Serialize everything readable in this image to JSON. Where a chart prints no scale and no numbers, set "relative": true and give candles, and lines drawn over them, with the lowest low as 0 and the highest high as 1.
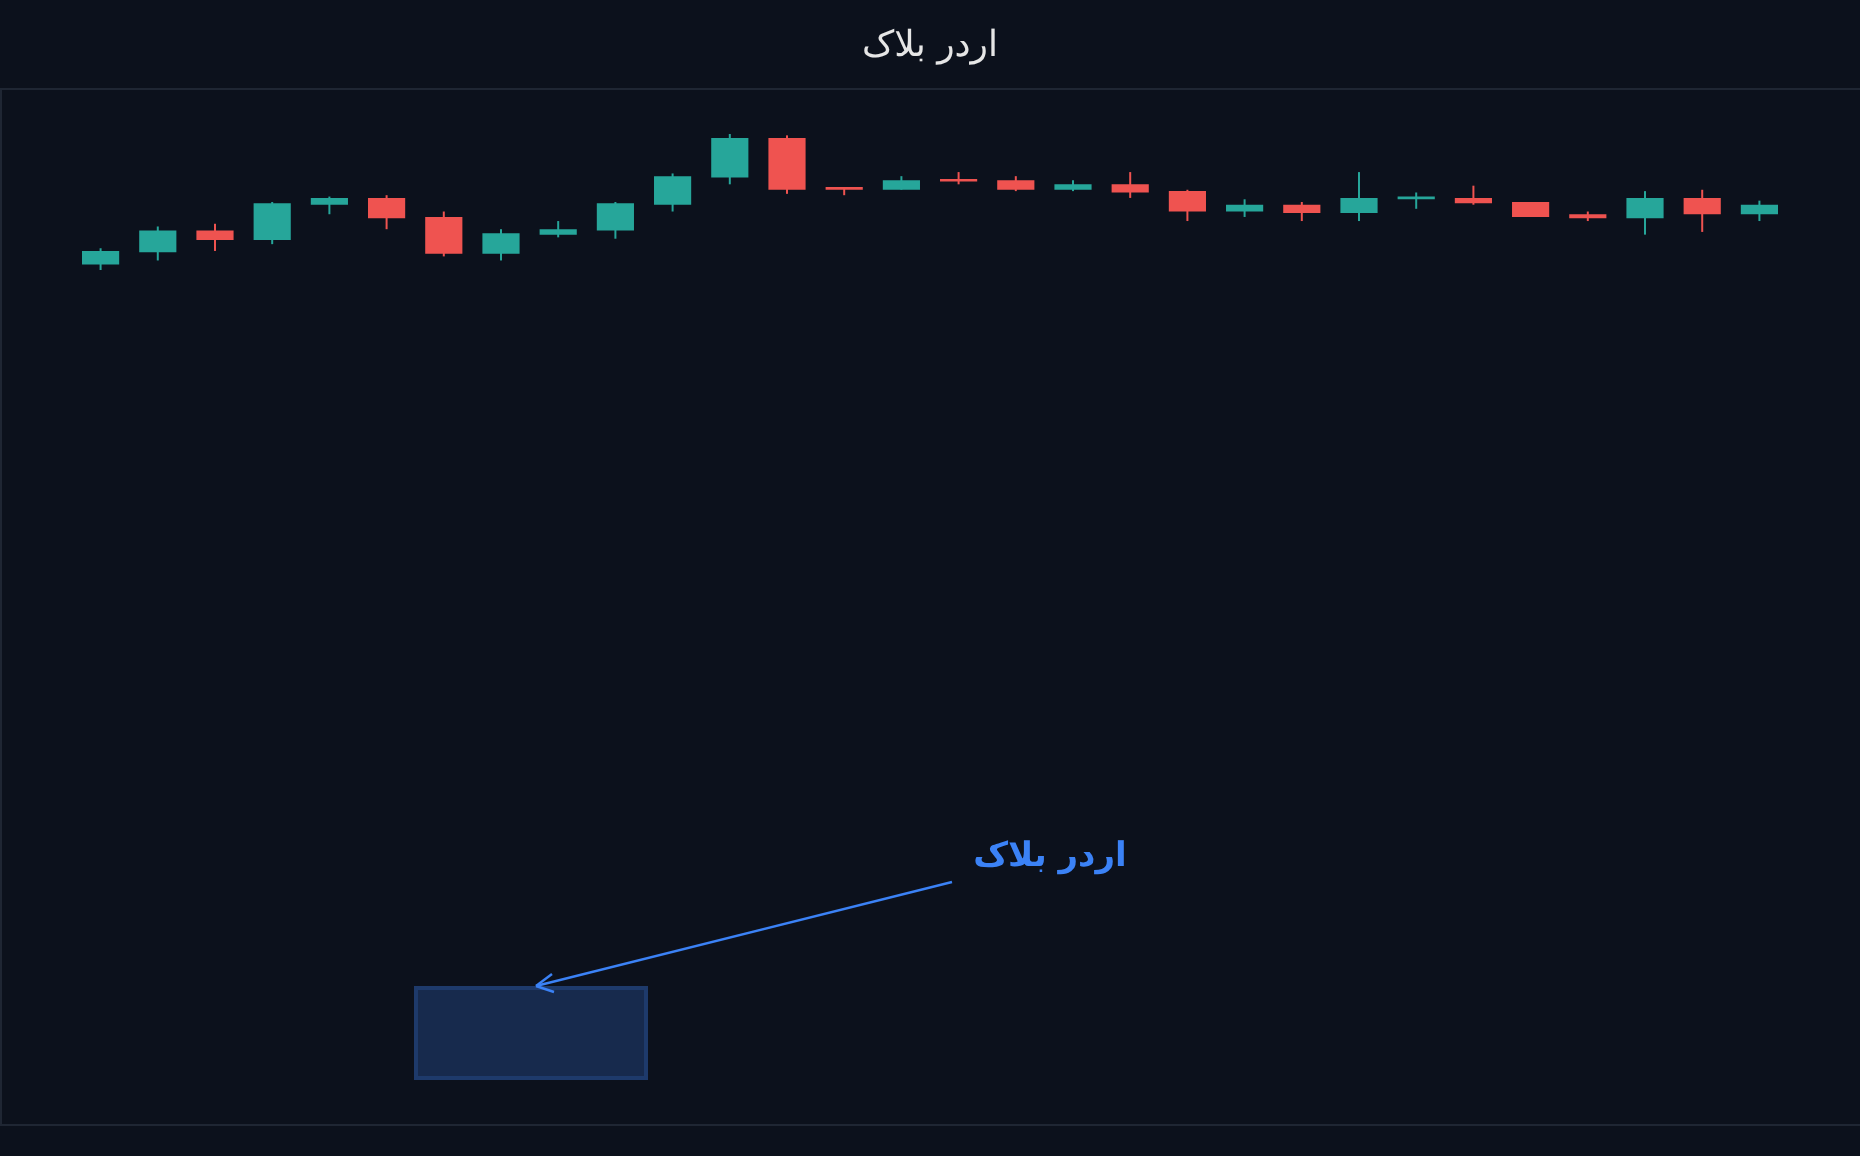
{
  "chart_data": {
    "type": "candlestick",
    "title": "اردر بلاک",
    "relative": true,
    "tick_labels": false,
    "categories": [
      null,
      null,
      null,
      null,
      null,
      null,
      null,
      null,
      null,
      null,
      null,
      null,
      null,
      null,
      null,
      null,
      null,
      null,
      null,
      null,
      null,
      null,
      null,
      null,
      null,
      null,
      null,
      null,
      null,
      null
    ],
    "ohlc": [
      [
        0.04,
        0.16,
        0,
        0.14
      ],
      [
        0.13,
        0.32,
        0.07,
        0.29
      ],
      [
        0.29,
        0.34,
        0.14,
        0.22
      ],
      [
        0.22,
        0.5,
        0.19,
        0.49
      ],
      [
        0.48,
        0.54,
        0.41,
        0.53
      ],
      [
        0.53,
        0.55,
        0.3,
        0.38
      ],
      [
        0.39,
        0.43,
        0.1,
        0.12
      ],
      [
        0.12,
        0.3,
        0.07,
        0.27
      ],
      [
        0.26,
        0.36,
        0.24,
        0.3
      ],
      [
        0.29,
        0.5,
        0.23,
        0.49
      ],
      [
        0.48,
        0.71,
        0.43,
        0.69
      ],
      [
        0.68,
        1,
        0.63,
        0.97
      ],
      [
        0.97,
        0.99,
        0.56,
        0.59
      ],
      [
        0.61,
        0.61,
        0.55,
        0.59
      ],
      [
        0.59,
        0.69,
        0.59,
        0.66
      ],
      [
        0.67,
        0.72,
        0.63,
        0.65
      ],
      [
        0.66,
        0.69,
        0.58,
        0.59
      ],
      [
        0.59,
        0.66,
        0.58,
        0.63
      ],
      [
        0.63,
        0.72,
        0.53,
        0.57
      ],
      [
        0.58,
        0.59,
        0.36,
        0.43
      ],
      [
        0.43,
        0.52,
        0.39,
        0.48
      ],
      [
        0.48,
        0.5,
        0.36,
        0.42
      ],
      [
        0.42,
        0.72,
        0.36,
        0.53
      ],
      [
        0.52,
        0.57,
        0.45,
        0.54
      ],
      [
        0.53,
        0.62,
        0.48,
        0.49
      ],
      [
        0.5,
        0.5,
        0.39,
        0.39
      ],
      [
        0.41,
        0.43,
        0.36,
        0.38
      ],
      [
        0.38,
        0.58,
        0.26,
        0.53
      ],
      [
        0.53,
        0.59,
        0.28,
        0.41
      ],
      [
        0.41,
        0.51,
        0.36,
        0.48
      ]
    ],
    "colors": [
      "#26a69a",
      "#26a69a",
      "#ef5350",
      "#26a69a",
      "#26a69a",
      "#ef5350",
      "#ef5350",
      "#26a69a",
      "#26a69a",
      "#26a69a",
      "#26a69a",
      "#26a69a",
      "#ef5350",
      "#ef5350",
      "#26a69a",
      "#ef5350",
      "#ef5350",
      "#26a69a",
      "#ef5350",
      "#ef5350",
      "#26a69a",
      "#ef5350",
      "#26a69a",
      "#26a69a",
      "#ef5350",
      "#ef5350",
      "#ef5350",
      "#26a69a",
      "#ef5350",
      "#26a69a"
    ],
    "annotations": [
      "اردر بلاک"
    ]
  }
}
